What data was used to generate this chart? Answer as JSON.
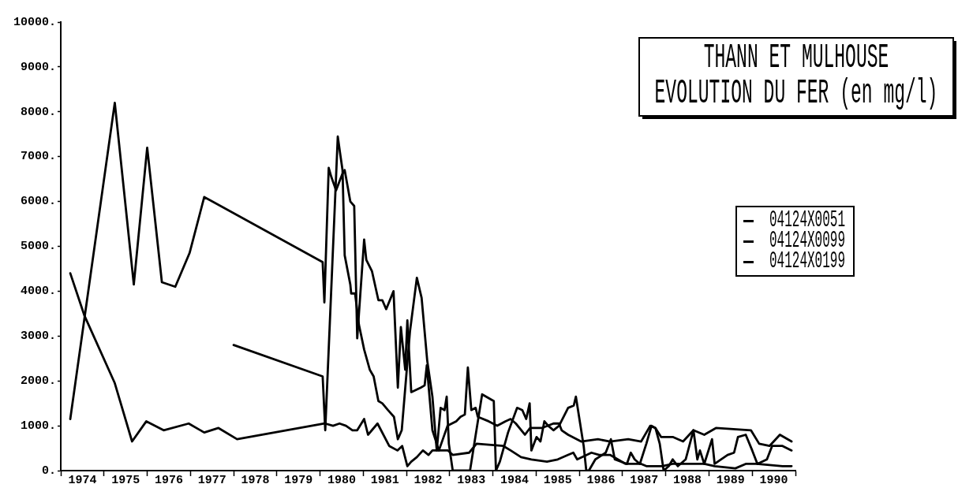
{
  "chart_data": {
    "type": "line",
    "title": "THANN ET MULHOUSE",
    "subtitle": "EVOLUTION DU FER (en mg/l)",
    "xlim": [
      1974,
      1991
    ],
    "xticks": [
      {
        "value": 1974,
        "label": null
      },
      {
        "value": 1974.5,
        "label": "1974"
      },
      {
        "value": 1975,
        "label": null
      },
      {
        "value": 1975.5,
        "label": "1975"
      },
      {
        "value": 1976,
        "label": null
      },
      {
        "value": 1976.5,
        "label": "1976"
      },
      {
        "value": 1977,
        "label": null
      },
      {
        "value": 1977.5,
        "label": "1977"
      },
      {
        "value": 1978,
        "label": null
      },
      {
        "value": 1978.5,
        "label": "1978"
      },
      {
        "value": 1979,
        "label": null
      },
      {
        "value": 1979.5,
        "label": "1979"
      },
      {
        "value": 1980,
        "label": null
      },
      {
        "value": 1980.5,
        "label": "1980"
      },
      {
        "value": 1981,
        "label": null
      },
      {
        "value": 1981.5,
        "label": "1981"
      },
      {
        "value": 1982,
        "label": null
      },
      {
        "value": 1982.5,
        "label": "1982"
      },
      {
        "value": 1983,
        "label": null
      },
      {
        "value": 1983.5,
        "label": "1983"
      },
      {
        "value": 1984,
        "label": null
      },
      {
        "value": 1984.5,
        "label": "1984"
      },
      {
        "value": 1985,
        "label": null
      },
      {
        "value": 1985.5,
        "label": "1985"
      },
      {
        "value": 1986,
        "label": null
      },
      {
        "value": 1986.5,
        "label": "1986"
      },
      {
        "value": 1987,
        "label": null
      },
      {
        "value": 1987.5,
        "label": "1987"
      },
      {
        "value": 1988,
        "label": null
      },
      {
        "value": 1988.5,
        "label": "1988"
      },
      {
        "value": 1989,
        "label": null
      },
      {
        "value": 1989.5,
        "label": "1989"
      },
      {
        "value": 1990,
        "label": null
      },
      {
        "value": 1990.5,
        "label": "1990"
      },
      {
        "value": 1991,
        "label": null
      }
    ],
    "ylim": [
      0,
      10000
    ],
    "yticks": [
      {
        "value": 0,
        "label": "0."
      },
      {
        "value": 1000,
        "label": "1000."
      },
      {
        "value": 2000,
        "label": "2000."
      },
      {
        "value": 3000,
        "label": "3000."
      },
      {
        "value": 4000,
        "label": "4000."
      },
      {
        "value": 5000,
        "label": "5000."
      },
      {
        "value": 6000,
        "label": "6000."
      },
      {
        "value": 7000,
        "label": "7000."
      },
      {
        "value": 8000,
        "label": "8000."
      },
      {
        "value": 9000,
        "label": "9000."
      },
      {
        "value": 10000,
        "label": "10000."
      }
    ],
    "legend": "right",
    "grid": false,
    "line_style": "solid",
    "marker": "none",
    "series": [
      {
        "name": "04124X0051",
        "color": "#000000",
        "x": [
          1974.22,
          1975.25,
          1975.69,
          1976.0,
          1976.34,
          1976.65,
          1976.98,
          1977.32,
          1980.06,
          1980.1,
          1980.2,
          1980.26,
          1980.37,
          1980.51,
          1980.57,
          1980.7,
          1980.79,
          1980.86,
          1981.02,
          1981.07,
          1981.2,
          1981.35,
          1981.44,
          1981.53,
          1981.7,
          1981.8,
          1981.87,
          1981.97,
          1982.02,
          1982.11,
          1982.33,
          1982.42,
          1982.47,
          1982.6,
          1982.75,
          1982.95,
          1983.15,
          1983.25,
          1983.35,
          1983.42,
          1983.5,
          1983.6,
          1983.65,
          1983.9,
          1984.1,
          1984.29,
          1984.41,
          1984.53,
          1984.74,
          1984.86,
          1985.13,
          1985.4,
          1985.53,
          1985.59,
          1985.74,
          1986.04,
          1986.43,
          1986.71,
          1987.13,
          1987.43,
          1987.64,
          1987.76,
          1987.89,
          1988.16,
          1988.4,
          1988.64,
          1988.89,
          1989.16,
          1989.97,
          1990.16,
          1990.4,
          1990.64,
          1990.91
        ],
        "values": [
          1150,
          8200,
          4150,
          7200,
          4200,
          4100,
          4850,
          6100,
          4650,
          3750,
          6750,
          6550,
          6250,
          6600,
          6700,
          6000,
          5900,
          2950,
          5150,
          4700,
          4450,
          3800,
          3800,
          3600,
          4000,
          1850,
          3200,
          2250,
          3350,
          1750,
          1850,
          1900,
          2350,
          900,
          450,
          1000,
          1100,
          1200,
          1250,
          2300,
          1350,
          1400,
          1200,
          1100,
          1000,
          1100,
          1150,
          1050,
          800,
          950,
          950,
          1050,
          1050,
          900,
          800,
          650,
          700,
          650,
          700,
          650,
          1000,
          950,
          750,
          750,
          650,
          900,
          800,
          950,
          900,
          600,
          550,
          800,
          650
        ]
      },
      {
        "name": "04124X0099",
        "color": "#000000",
        "x": [
          1974.22,
          1974.55,
          1975.25,
          1975.65,
          1975.98,
          1976.38,
          1976.96,
          1977.32,
          1977.65,
          1978.08,
          1980.08,
          1980.12,
          1980.3,
          1980.45,
          1980.6,
          1980.75,
          1980.86,
          1981.02,
          1981.11,
          1981.33,
          1981.6,
          1981.79,
          1981.9,
          1982.02,
          1982.11,
          1982.24,
          1982.38,
          1982.51,
          1982.6,
          1982.96,
          1983.07,
          1983.45,
          1983.62,
          1984.24,
          1984.41,
          1984.65,
          1984.89,
          1985.25,
          1985.5,
          1985.74,
          1985.86,
          1985.95,
          1986.28,
          1986.46,
          1986.71,
          1987.07,
          1987.43,
          1987.55,
          1987.92,
          1988.16,
          1988.52,
          1988.64,
          1988.89,
          1989.13,
          1989.61,
          1989.85,
          1990.1,
          1990.7,
          1990.91
        ],
        "values": [
          4400,
          3450,
          1950,
          650,
          1100,
          900,
          1050,
          850,
          950,
          700,
          1050,
          1050,
          1000,
          1050,
          1000,
          900,
          900,
          1150,
          800,
          1050,
          550,
          450,
          550,
          100,
          200,
          300,
          450,
          350,
          450,
          450,
          350,
          400,
          600,
          550,
          450,
          300,
          250,
          200,
          250,
          350,
          400,
          250,
          400,
          350,
          350,
          150,
          150,
          100,
          100,
          150,
          150,
          150,
          150,
          100,
          50,
          150,
          150,
          100,
          100
        ]
      },
      {
        "name": "04124X0199",
        "color": "#000000",
        "x": [
          1978.0,
          1980.06,
          1980.12,
          1980.41,
          1980.46,
          1980.52,
          1980.57,
          1980.7,
          1980.72,
          1980.81,
          1980.9,
          1981.02,
          1981.15,
          1981.24,
          1981.35,
          1981.44,
          1981.57,
          1981.71,
          1981.8,
          1981.89,
          1982.08,
          1982.24,
          1982.35,
          1982.48,
          1982.6,
          1982.7,
          1982.79,
          1982.88,
          1982.93,
          1982.98,
          1983.07,
          1983.47,
          1983.75,
          1984.02,
          1984.07,
          1984.16,
          1984.35,
          1984.56,
          1984.68,
          1984.77,
          1984.85,
          1984.89,
          1985.01,
          1985.1,
          1985.19,
          1985.28,
          1985.4,
          1985.53,
          1985.74,
          1985.87,
          1985.92,
          1986.01,
          1986.1,
          1986.16,
          1986.22,
          1986.37,
          1986.61,
          1986.73,
          1986.82,
          1987.1,
          1987.19,
          1987.28,
          1987.4,
          1987.55,
          1987.67,
          1987.76,
          1987.86,
          1987.95,
          1988.07,
          1988.16,
          1988.28,
          1988.46,
          1988.64,
          1988.73,
          1988.79,
          1988.89,
          1989.07,
          1989.13,
          1989.43,
          1989.58,
          1989.67,
          1989.85,
          1990.0,
          1990.12,
          1990.34,
          1990.46,
          1990.7,
          1990.91
        ],
        "values": [
          2800,
          2100,
          900,
          7450,
          7100,
          6700,
          4800,
          4150,
          3950,
          3950,
          3250,
          2700,
          2250,
          2100,
          1550,
          1500,
          1350,
          1200,
          700,
          900,
          3100,
          4300,
          3850,
          2450,
          1650,
          450,
          1400,
          1350,
          1650,
          600,
          0,
          0,
          1700,
          1550,
          0,
          200,
          850,
          1400,
          1350,
          1150,
          1500,
          450,
          750,
          650,
          1100,
          1000,
          900,
          1000,
          1400,
          1450,
          1650,
          1100,
          550,
          0,
          0,
          250,
          400,
          700,
          250,
          150,
          400,
          250,
          150,
          600,
          1000,
          950,
          600,
          0,
          100,
          250,
          100,
          250,
          900,
          250,
          450,
          150,
          700,
          150,
          350,
          400,
          750,
          800,
          450,
          150,
          250,
          550,
          550,
          450
        ]
      }
    ]
  }
}
